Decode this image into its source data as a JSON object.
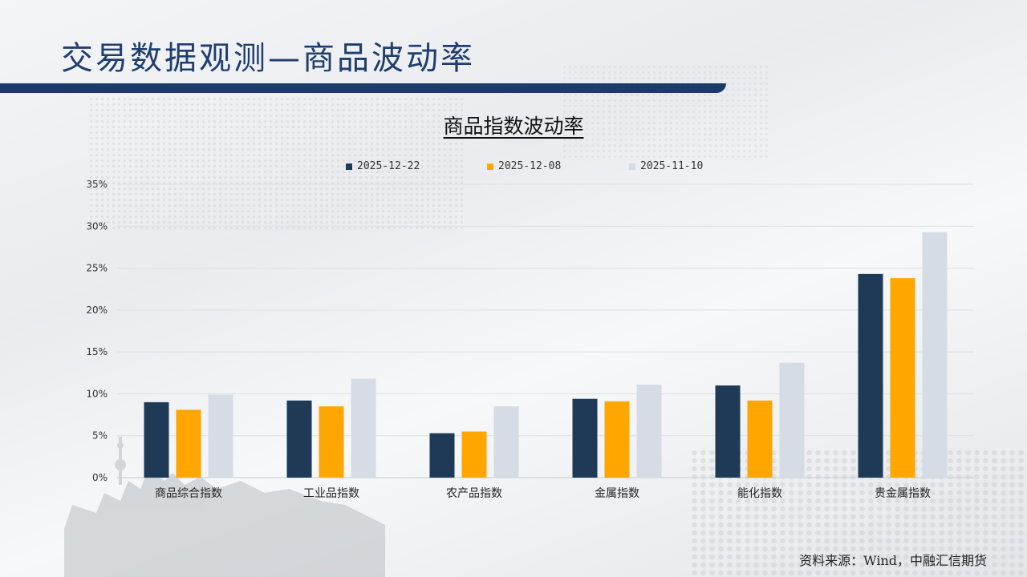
{
  "page": {
    "title": "交易数据观测—商品波动率",
    "source": "资料来源：Wind，中融汇信期货"
  },
  "colors": {
    "accent": "#1d3a6b",
    "series": [
      "#1f3a56",
      "#ffa600",
      "#d5dce6"
    ]
  },
  "chart_data": {
    "type": "bar",
    "title": "商品指数波动率",
    "categories": [
      "商品综合指数",
      "工业品指数",
      "农产品指数",
      "金属指数",
      "能化指数",
      "贵金属指数"
    ],
    "series": [
      {
        "name": "2025-12-22",
        "values": [
          9.0,
          9.2,
          5.3,
          9.4,
          11.0,
          24.3
        ]
      },
      {
        "name": "2025-12-08",
        "values": [
          8.1,
          8.5,
          5.5,
          9.1,
          9.2,
          23.8
        ]
      },
      {
        "name": "2025-11-10",
        "values": [
          9.9,
          11.8,
          8.5,
          11.1,
          13.7,
          29.3
        ]
      }
    ],
    "ylim": [
      0,
      35
    ],
    "yticks": [
      0,
      5,
      10,
      15,
      20,
      25,
      30,
      35
    ],
    "ytick_labels": [
      "0%",
      "5%",
      "10%",
      "15%",
      "20%",
      "25%",
      "30%",
      "35%"
    ],
    "grid": true,
    "legend_position": "top"
  }
}
